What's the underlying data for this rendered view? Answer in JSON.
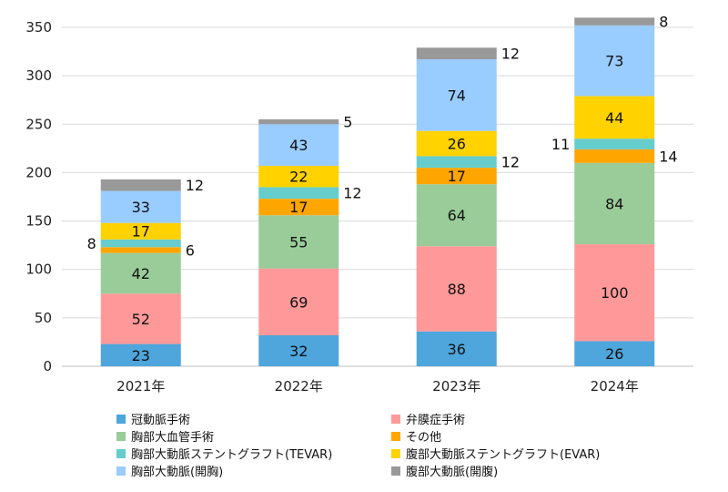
{
  "chart_data": {
    "type": "bar",
    "stacked": true,
    "categories": [
      "2021年",
      "2022年",
      "2023年",
      "2024年"
    ],
    "ylim": [
      0,
      350
    ],
    "yticks": [
      0,
      50,
      100,
      150,
      200,
      250,
      300,
      350
    ],
    "grid": true,
    "legend_position": "bottom",
    "series": [
      {
        "name": "冠動脈手術",
        "color": "#4EA6DC",
        "values": [
          23,
          32,
          36,
          26
        ]
      },
      {
        "name": "弁膜症手術",
        "color": "#FF9999",
        "values": [
          52,
          69,
          88,
          100
        ]
      },
      {
        "name": "胸部大血管手術",
        "color": "#99CC99",
        "values": [
          42,
          55,
          64,
          84
        ]
      },
      {
        "name": "その他",
        "color": "#FFA500",
        "values": [
          6,
          17,
          17,
          14
        ]
      },
      {
        "name": "胸部大動脈ステントグラフト(TEVAR)",
        "color": "#66CCCC",
        "values": [
          8,
          12,
          12,
          11
        ]
      },
      {
        "name": "腹部大動脈ステントグラフト(EVAR)",
        "color": "#FFD200",
        "values": [
          17,
          22,
          26,
          44
        ]
      },
      {
        "name": "胸部大動脈(開胸)",
        "color": "#99CCFF",
        "values": [
          33,
          43,
          74,
          73
        ]
      },
      {
        "name": "腹部大動脈(開腹)",
        "color": "#999999",
        "values": [
          12,
          5,
          12,
          8
        ]
      }
    ]
  }
}
